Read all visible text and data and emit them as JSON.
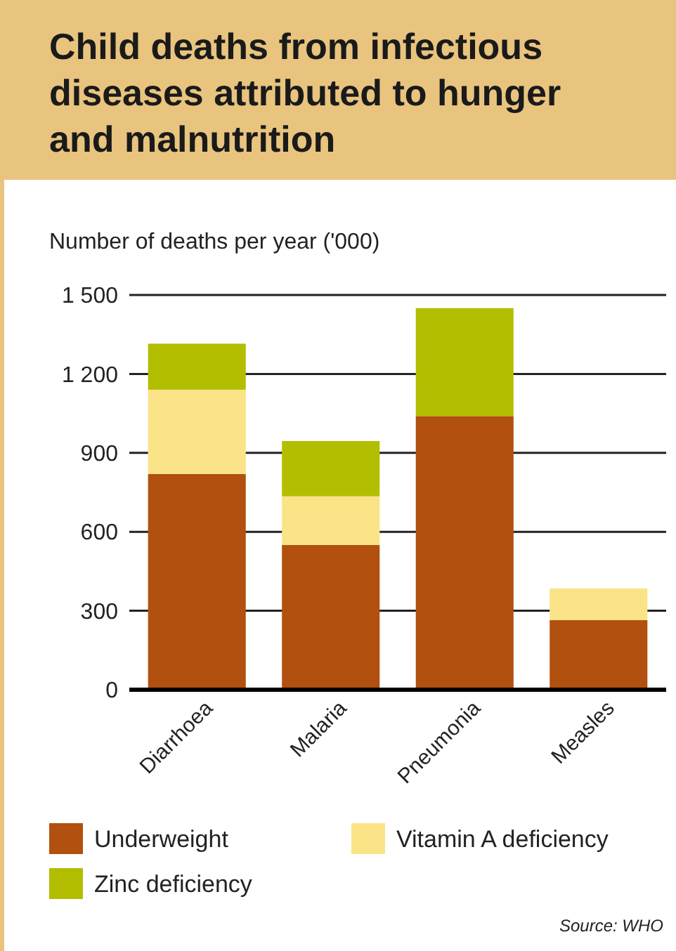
{
  "chart_data": {
    "type": "bar",
    "title": "Child deaths from infectious diseases attributed to hunger and malnutrition",
    "ylabel": "Number of deaths per year ('000)",
    "categories": [
      "Diarrhoea",
      "Malaria",
      "Pneumonia",
      "Measles"
    ],
    "stacked": true,
    "series": [
      {
        "name": "Underweight",
        "color": "#b1500f",
        "values": [
          820,
          550,
          1040,
          265
        ]
      },
      {
        "name": "Vitamin A deficiency",
        "color": "#fbe487",
        "values": [
          320,
          185,
          0,
          120
        ]
      },
      {
        "name": "Zinc deficiency",
        "color": "#b3be00",
        "values": [
          175,
          210,
          410,
          0
        ]
      }
    ],
    "ylim": [
      0,
      1500
    ],
    "yticks": [
      {
        "value": 0,
        "label": "0"
      },
      {
        "value": 300,
        "label": "300"
      },
      {
        "value": 600,
        "label": "600"
      },
      {
        "value": 900,
        "label": "900"
      },
      {
        "value": 1200,
        "label": "1 200"
      },
      {
        "value": 1500,
        "label": "1 500"
      }
    ],
    "grid": "y",
    "legend": "bottom",
    "annotations": [
      "Source: WHO"
    ]
  }
}
